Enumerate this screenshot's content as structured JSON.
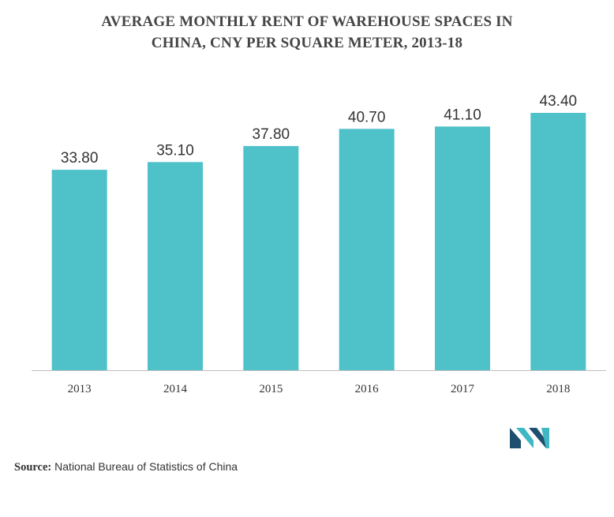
{
  "title": {
    "line1": "AVERAGE MONTHLY RENT OF WAREHOUSE SPACES IN",
    "line2": "CHINA, CNY PER SQUARE METER, 2013-18"
  },
  "chart_data": {
    "type": "bar",
    "title": "AVERAGE MONTHLY RENT OF WAREHOUSE SPACES IN CHINA, CNY PER SQUARE METER, 2013-18",
    "categories": [
      "2013",
      "2014",
      "2015",
      "2016",
      "2017",
      "2018"
    ],
    "values": [
      33.8,
      35.1,
      37.8,
      40.7,
      41.1,
      43.4
    ],
    "value_labels": [
      "33.80",
      "35.10",
      "37.80",
      "40.70",
      "41.10",
      "43.40"
    ],
    "xlabel": "",
    "ylabel": "",
    "ylim": [
      0,
      43.4
    ],
    "grid": false,
    "legend": "none",
    "colors": {
      "bar": "#4fc1c8",
      "axis": "#bdbdbd"
    }
  },
  "source": {
    "label": "Source:",
    "text": "National Bureau of Statistics of China"
  },
  "logo": {
    "icon": "mordor-intelligence-logo-icon",
    "colors": [
      "#1f4f6e",
      "#3fb8c4"
    ]
  }
}
